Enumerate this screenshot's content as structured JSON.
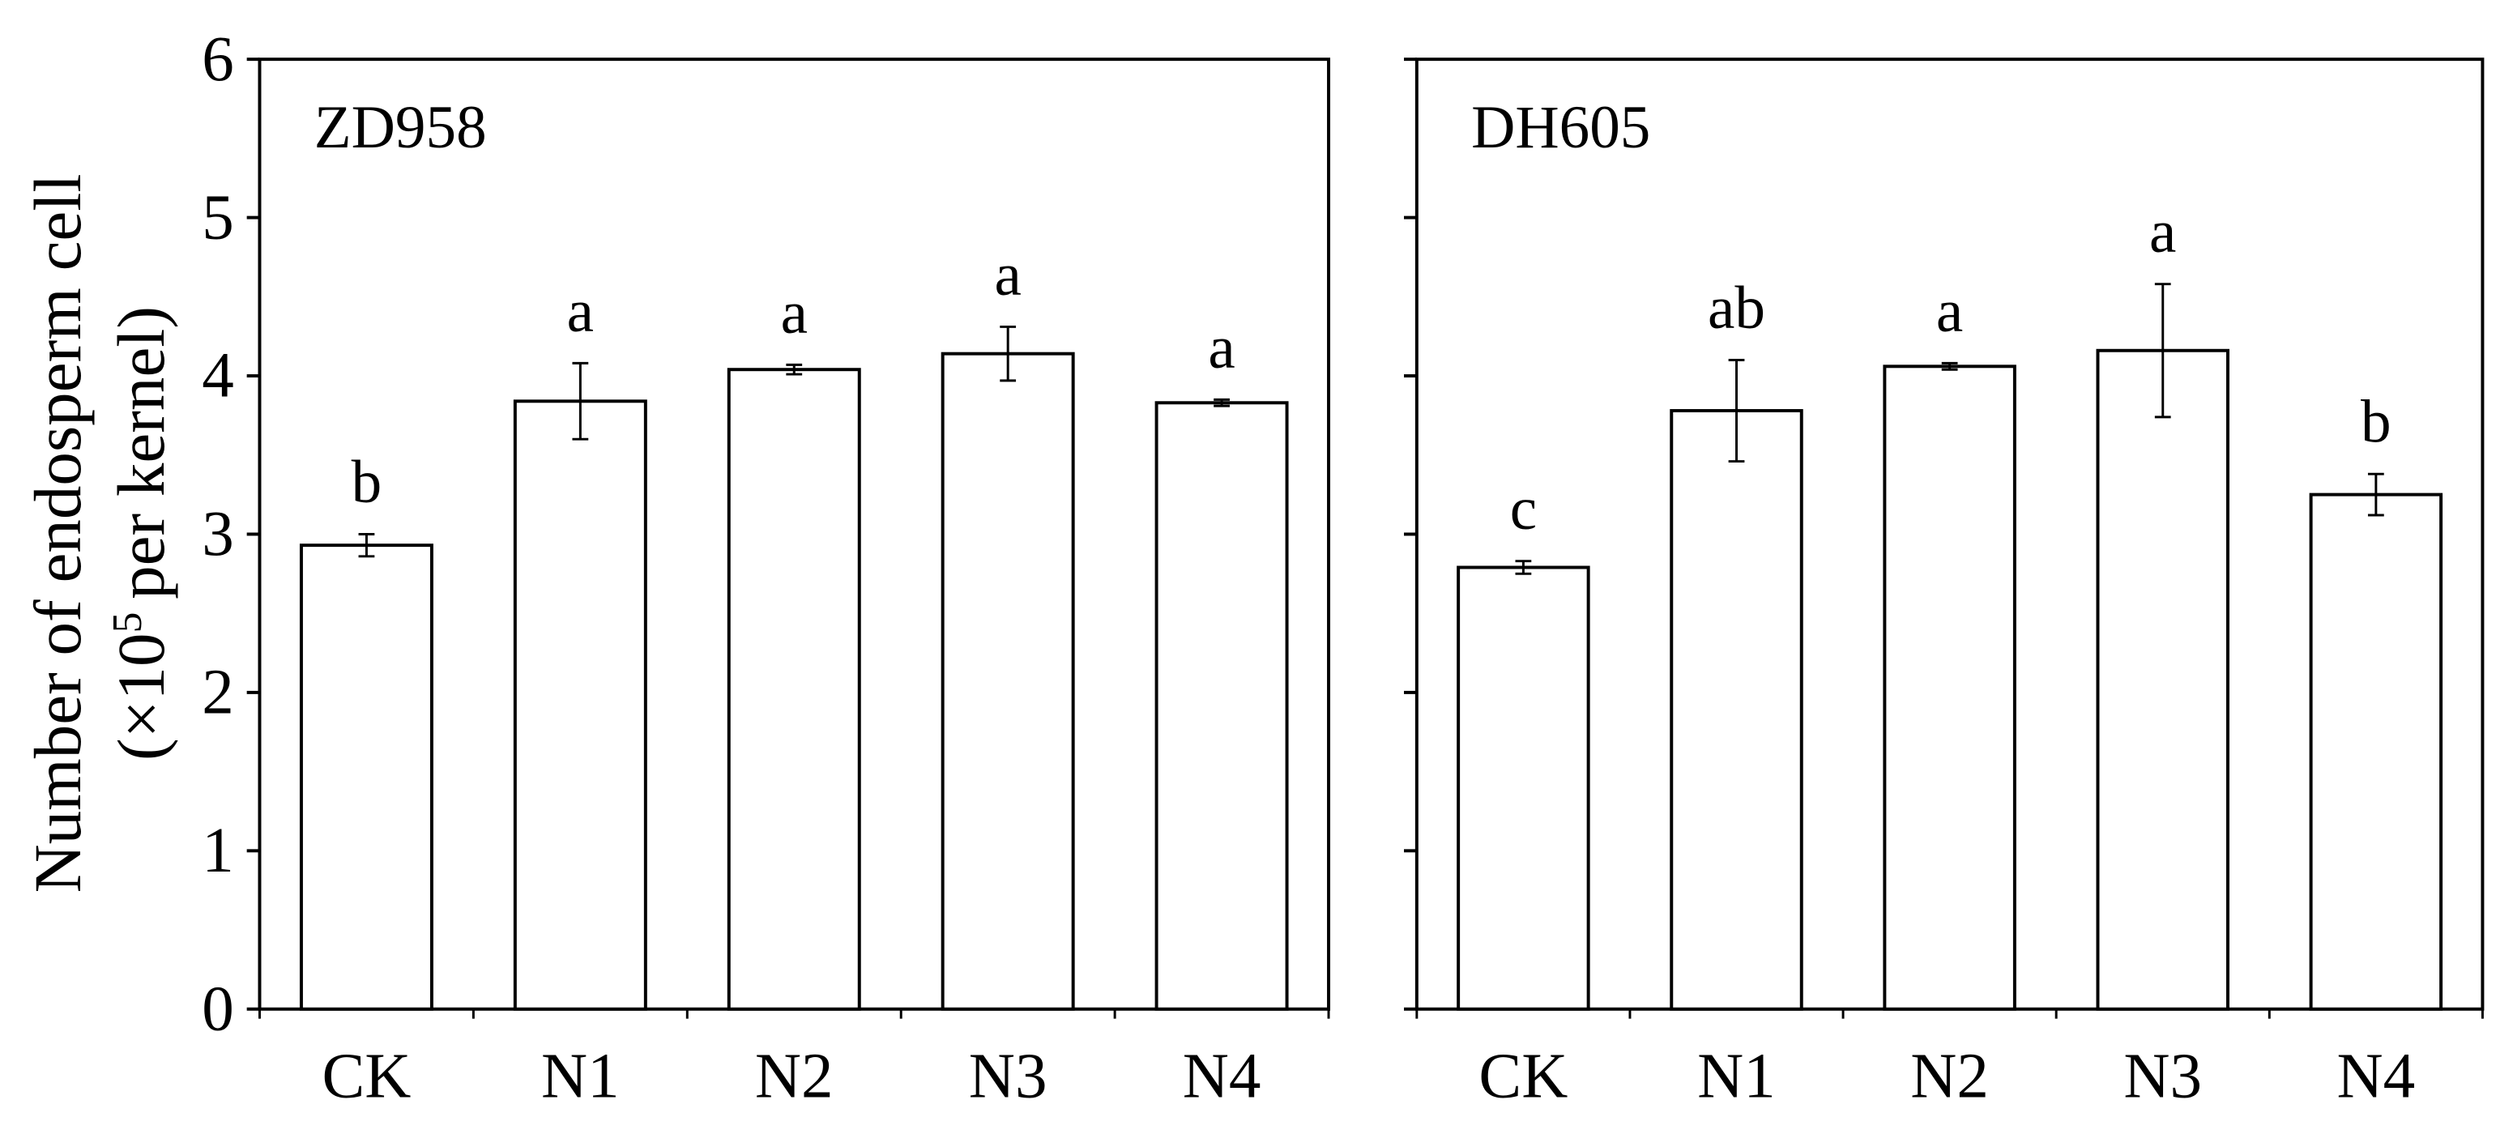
{
  "chart_data": [
    {
      "type": "bar",
      "title": "ZD958",
      "ylabel": {
        "line1": "Number of endosperm cell",
        "line2_start": "(×10",
        "line2_sup": "5",
        "line2_end": "per kernel)"
      },
      "categories": [
        "CK",
        "N1",
        "N2",
        "N3",
        "N4"
      ],
      "values": [
        2.93,
        3.84,
        4.04,
        4.14,
        3.83
      ],
      "error": [
        0.07,
        0.24,
        0.03,
        0.17,
        0.02
      ],
      "annotations": [
        "b",
        "a",
        "a",
        "a",
        "a"
      ],
      "color": "#ffffff",
      "edgecolor": "#000000",
      "ylim": [
        0,
        6
      ],
      "yticks": [
        0,
        1,
        2,
        3,
        4,
        5,
        6
      ],
      "ytick_labels": true
    },
    {
      "type": "bar",
      "title": "DH605",
      "categories": [
        "CK",
        "N1",
        "N2",
        "N3",
        "N4"
      ],
      "values": [
        2.79,
        3.78,
        4.06,
        4.16,
        3.25
      ],
      "error": [
        0.04,
        0.32,
        0.02,
        0.42,
        0.13
      ],
      "annotations": [
        "c",
        "ab",
        "a",
        "a",
        "b"
      ],
      "color": "#ffffff",
      "edgecolor": "#000000",
      "ylim": [
        0,
        6
      ],
      "yticks": [
        0,
        1,
        2,
        3,
        4,
        5,
        6
      ],
      "ytick_labels": false
    }
  ]
}
